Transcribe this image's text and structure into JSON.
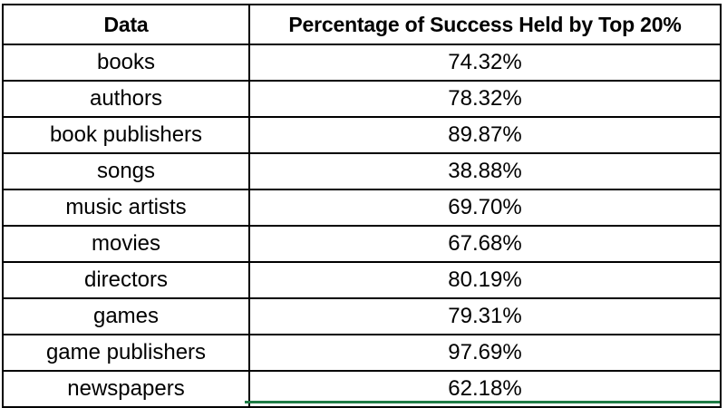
{
  "table": {
    "columns": [
      "Data",
      "Percentage of Success Held by Top 20%"
    ],
    "rows": [
      [
        "books",
        "74.32%"
      ],
      [
        "authors",
        "78.32%"
      ],
      [
        "book publishers",
        "89.87%"
      ],
      [
        "songs",
        "38.88%"
      ],
      [
        "music artists",
        "69.70%"
      ],
      [
        "movies",
        "67.68%"
      ],
      [
        "directors",
        "80.19%"
      ],
      [
        "games",
        "79.31%"
      ],
      [
        "game publishers",
        "97.69%"
      ],
      [
        "newspapers",
        "62.18%"
      ]
    ]
  },
  "colors": {
    "border": "#000000",
    "selection": "#1e7b45",
    "background": "#ffffff"
  }
}
